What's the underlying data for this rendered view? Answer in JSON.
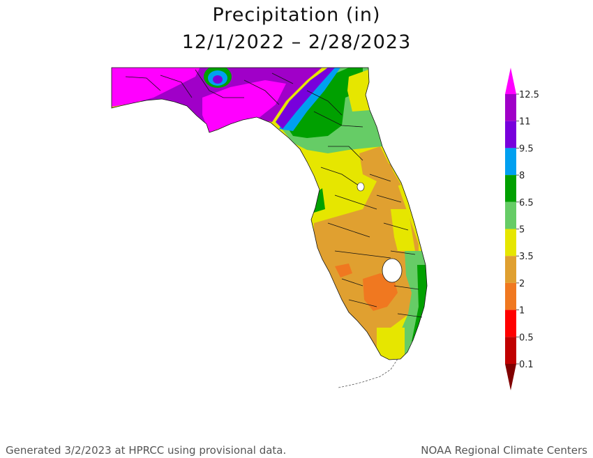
{
  "title": {
    "line1": "Precipitation (in)",
    "line2": "12/1/2022 – 2/28/2023"
  },
  "legend": {
    "labels": [
      "12.5",
      "11",
      "9.5",
      "8",
      "6.5",
      "5",
      "3.5",
      "2",
      "1",
      "0.5",
      "0.1"
    ],
    "colors_top_to_bottom": [
      "#ff00ff",
      "#a000c8",
      "#7800dc",
      "#00a0f0",
      "#00a000",
      "#66cc66",
      "#e6e600",
      "#e0a030",
      "#f07820",
      "#ff0000",
      "#c00000",
      "#800000"
    ]
  },
  "map": {
    "region": "Florida",
    "fill_colors": {
      "magenta": "#ff00ff",
      "purple": "#a000c8",
      "violet": "#7800dc",
      "blue": "#00a0f0",
      "dark_green": "#00a000",
      "light_green": "#66cc66",
      "yellow": "#e6e600",
      "tan": "#e0a030",
      "orange": "#f07820"
    }
  },
  "footer": {
    "left": "Generated 3/2/2023 at HPRCC using provisional data.",
    "right": "NOAA Regional Climate Centers"
  }
}
